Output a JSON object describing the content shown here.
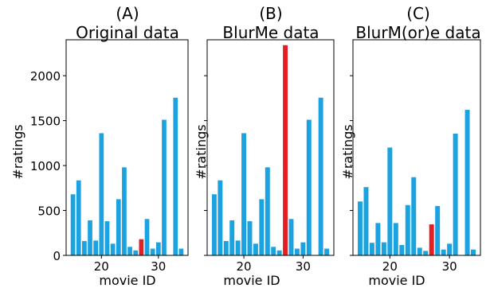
{
  "colors": {
    "bar": "#1aa3e0",
    "highlight": "#e41f24",
    "axis": "#000000",
    "background": "#ffffff"
  },
  "chart_data": [
    {
      "type": "bar",
      "title": "(A)",
      "subtitle": "Original data",
      "xlabel": "movie ID",
      "ylabel": "#ratings",
      "xlim": [
        13.8,
        35.2
      ],
      "ylim": [
        0,
        2400
      ],
      "xticks": [
        20,
        30
      ],
      "yticks": [
        0,
        500,
        1000,
        1500,
        2000
      ],
      "show_ytick_labels": true,
      "grid": false,
      "highlight_x": 27,
      "x": [
        15,
        16,
        17,
        18,
        19,
        20,
        21,
        22,
        23,
        24,
        25,
        26,
        27,
        28,
        29,
        30,
        31,
        32,
        33,
        34,
        35
      ],
      "values": [
        680,
        835,
        160,
        390,
        165,
        1360,
        380,
        130,
        625,
        980,
        95,
        55,
        180,
        405,
        75,
        145,
        1510,
        0,
        1755,
        75,
        0
      ]
    },
    {
      "type": "bar",
      "title": "(B)",
      "subtitle": "BlurMe data",
      "xlabel": "movie ID",
      "ylabel": "#ratings",
      "xlim": [
        13.8,
        35.2
      ],
      "ylim": [
        0,
        2400
      ],
      "xticks": [
        20,
        30
      ],
      "yticks": [
        0,
        500,
        1000,
        1500,
        2000
      ],
      "show_ytick_labels": false,
      "grid": false,
      "highlight_x": 27,
      "x": [
        15,
        16,
        17,
        18,
        19,
        20,
        21,
        22,
        23,
        24,
        25,
        26,
        27,
        28,
        29,
        30,
        31,
        32,
        33,
        34,
        35
      ],
      "values": [
        680,
        835,
        160,
        390,
        165,
        1360,
        380,
        130,
        625,
        980,
        95,
        55,
        2340,
        405,
        75,
        145,
        1510,
        0,
        1755,
        75,
        0
      ]
    },
    {
      "type": "bar",
      "title": "(C)",
      "subtitle": "BlurM(or)e data",
      "xlabel": "movie ID",
      "ylabel": "#ratings",
      "xlim": [
        13.8,
        35.2
      ],
      "ylim": [
        0,
        2400
      ],
      "xticks": [
        20,
        30
      ],
      "yticks": [
        0,
        500,
        1000,
        1500,
        2000
      ],
      "show_ytick_labels": false,
      "grid": false,
      "highlight_x": 27,
      "x": [
        15,
        16,
        17,
        18,
        19,
        20,
        21,
        22,
        23,
        24,
        25,
        26,
        27,
        28,
        29,
        30,
        31,
        32,
        33,
        34,
        35
      ],
      "values": [
        600,
        760,
        140,
        360,
        145,
        1200,
        360,
        115,
        560,
        870,
        85,
        50,
        345,
        550,
        65,
        130,
        1355,
        0,
        1620,
        65,
        0
      ]
    }
  ]
}
